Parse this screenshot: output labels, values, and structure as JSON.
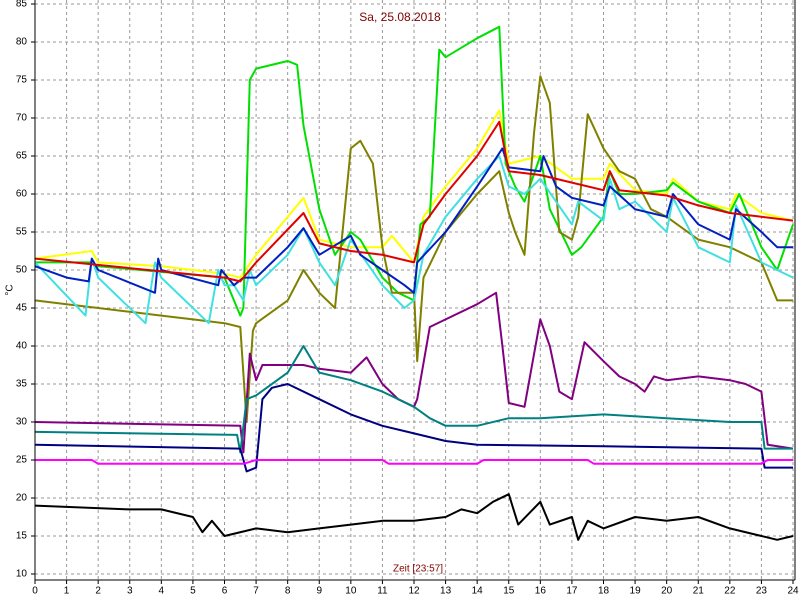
{
  "chart_data": {
    "type": "line",
    "title": "Sa, 25.08.2018",
    "xlabel": "Zeit [23:57]",
    "ylabel": "°C",
    "xlim": [
      0,
      24
    ],
    "xticks": [
      0,
      1,
      2,
      3,
      4,
      5,
      6,
      7,
      8,
      9,
      10,
      11,
      12,
      13,
      14,
      15,
      16,
      17,
      18,
      19,
      20,
      21,
      22,
      23,
      24
    ],
    "ylim": [
      10,
      85
    ],
    "yticks": [
      10,
      15,
      20,
      25,
      30,
      35,
      40,
      45,
      50,
      55,
      60,
      65,
      70,
      75,
      80,
      85
    ],
    "grid": true,
    "series": [
      {
        "color": "#ffff00",
        "x": [
          0,
          1.8,
          2,
          4,
          6,
          6.5,
          7,
          8.5,
          9,
          10,
          11,
          11.3,
          12,
          12.3,
          13,
          14,
          14.7,
          15,
          16,
          17,
          18,
          18.2,
          19,
          20,
          20.2,
          21,
          22,
          22.2,
          23,
          24
        ],
        "values": [
          51.5,
          52.5,
          51,
          50.5,
          49.5,
          49,
          52,
          59.5,
          54,
          53,
          53,
          54.5,
          51,
          57,
          61,
          66,
          71,
          64,
          65,
          62,
          62,
          64,
          60.5,
          60,
          62,
          59,
          58,
          60,
          57.5,
          56.5
        ]
      },
      {
        "color": "#00e000",
        "x": [
          0,
          1.8,
          2,
          6,
          6.5,
          6.6,
          6.8,
          7,
          8,
          8.3,
          8.5,
          9,
          9.5,
          10,
          10.3,
          11,
          11.5,
          12,
          12.2,
          12.5,
          12.8,
          13,
          14,
          14.7,
          14.9,
          15.2,
          15.5,
          16,
          16.3,
          17,
          17.3,
          18,
          18.2,
          18.5,
          19,
          20,
          20.2,
          21,
          22,
          22.3,
          23,
          23.5,
          24
        ],
        "values": [
          51,
          51,
          50.5,
          49,
          44,
          45,
          75,
          76.5,
          77.5,
          77,
          69,
          58,
          52,
          55,
          54,
          49,
          47,
          46,
          56,
          57,
          79,
          78,
          80.5,
          82,
          64,
          61,
          59,
          65,
          58,
          52,
          53,
          57,
          63,
          60,
          60,
          60.5,
          61.5,
          59,
          57.5,
          60,
          53,
          50,
          56
        ]
      },
      {
        "color": "#808000",
        "x": [
          0,
          1,
          2,
          3,
          4,
          5,
          6,
          6.5,
          6.7,
          6.9,
          7,
          8,
          8.5,
          9,
          9.5,
          10,
          10.3,
          10.7,
          11,
          11.3,
          12,
          12.1,
          12.3,
          13,
          14,
          14.7,
          15,
          15.2,
          15.5,
          15.8,
          16,
          16.3,
          16.6,
          17,
          17.2,
          17.5,
          18,
          18.5,
          19,
          19.5,
          20,
          20.5,
          21,
          22,
          23,
          23.5,
          24
        ],
        "values": [
          46,
          45.5,
          45,
          44.5,
          44,
          43.5,
          43,
          42.5,
          30,
          42,
          43,
          46,
          50,
          47,
          45,
          66,
          67,
          64,
          53,
          47,
          47,
          38,
          49,
          55,
          60,
          63,
          57.5,
          55,
          52,
          68,
          75.5,
          72,
          55,
          54,
          57,
          70.5,
          66,
          63,
          62,
          58,
          57,
          55.5,
          54,
          53,
          51,
          46,
          46
        ]
      },
      {
        "color": "#40e0e0",
        "x": [
          0,
          1.6,
          1.8,
          2,
          3.5,
          3.8,
          4,
          5.5,
          5.8,
          6,
          6.3,
          6.6,
          6.8,
          7,
          8,
          8.5,
          9,
          9.5,
          10,
          10.5,
          11,
          11.7,
          12,
          12.3,
          13,
          14,
          14.7,
          15,
          15.5,
          16,
          17,
          17.2,
          18,
          18.2,
          18.5,
          19,
          20,
          20.2,
          21,
          22,
          22.2,
          23,
          24
        ],
        "values": [
          51,
          44,
          51.5,
          49,
          43,
          51,
          49,
          43,
          50,
          48,
          48,
          46,
          50,
          48,
          52,
          55.5,
          51,
          48,
          54,
          51,
          48,
          45,
          46,
          52,
          57,
          62,
          65,
          61,
          60,
          62,
          56,
          59,
          56.5,
          62,
          58,
          59,
          55,
          59.5,
          53,
          51,
          58.5,
          51,
          49
        ]
      },
      {
        "color": "#0020c0",
        "x": [
          0,
          1,
          1.7,
          1.8,
          2,
          3.8,
          3.9,
          4,
          5.8,
          5.9,
          6.3,
          6.6,
          7,
          8,
          8.5,
          9,
          10,
          10.3,
          11,
          11.7,
          12,
          12.1,
          13,
          14,
          14.8,
          15,
          16,
          16.1,
          16.5,
          17,
          18,
          18.2,
          19,
          20,
          20.2,
          21,
          22,
          22.2,
          23,
          23.5,
          24
        ],
        "values": [
          50.5,
          49,
          48.5,
          51.5,
          50,
          47,
          51.5,
          50,
          48,
          50,
          48,
          49,
          49,
          53,
          55.5,
          52,
          54.5,
          52,
          50,
          48,
          47,
          51,
          55,
          61,
          66,
          63.5,
          63,
          65,
          61,
          59.5,
          58.5,
          61,
          58,
          57,
          60,
          56,
          54,
          58,
          55,
          53,
          53
        ]
      },
      {
        "color": "#e00000",
        "x": [
          0,
          6,
          6.5,
          7,
          8.5,
          9,
          10,
          11,
          12,
          12.3,
          13,
          14,
          14.7,
          15,
          16,
          17,
          18,
          18.2,
          18.5,
          20,
          21,
          22,
          23,
          24
        ],
        "values": [
          51.5,
          49,
          48.5,
          51,
          57.5,
          53.5,
          52.5,
          52,
          51,
          56,
          60,
          65,
          69.5,
          63,
          62.5,
          61.5,
          60.5,
          63,
          60.5,
          59.8,
          58.5,
          57.5,
          57,
          56.5
        ]
      },
      {
        "color": "#800080",
        "x": [
          0,
          6.5,
          6.6,
          6.8,
          7,
          7.2,
          8,
          8.5,
          9,
          10,
          10.5,
          11,
          11.5,
          12,
          12.1,
          12.5,
          13,
          14,
          14.6,
          14.8,
          15,
          15.5,
          16,
          16.3,
          16.6,
          17,
          17.4,
          18,
          18.5,
          19,
          19.3,
          19.6,
          20,
          21,
          22,
          22.5,
          23,
          23.2,
          24
        ],
        "values": [
          30,
          29.5,
          26,
          39,
          35.5,
          37.5,
          37.5,
          37.5,
          37,
          36.5,
          38.5,
          35,
          33,
          32,
          33,
          42.5,
          43.5,
          45.5,
          47,
          40,
          32.5,
          32,
          43.5,
          40,
          34,
          33,
          40.5,
          38,
          36,
          35,
          34,
          36,
          35.5,
          36,
          35.5,
          35,
          34,
          27,
          26.5
        ]
      },
      {
        "color": "#008080",
        "x": [
          0,
          6.4,
          6.5,
          6.7,
          7,
          8,
          8.5,
          9,
          10,
          11,
          12,
          12.5,
          13,
          14,
          15,
          16,
          18,
          20,
          22,
          23,
          23.1,
          24
        ],
        "values": [
          28.7,
          28.3,
          26,
          33,
          33.5,
          36.5,
          40,
          36.5,
          35.5,
          34,
          32,
          30.5,
          29.5,
          29.5,
          30.5,
          30.5,
          31,
          30.5,
          30,
          30,
          26.5,
          26.5
        ]
      },
      {
        "color": "#000080",
        "x": [
          0,
          6.5,
          6.7,
          7,
          7.2,
          7.5,
          8,
          9,
          10,
          11,
          12,
          13,
          14,
          18,
          23,
          23.1,
          24
        ],
        "values": [
          27,
          26.5,
          23.5,
          24,
          33,
          34.5,
          35,
          33,
          31,
          29.5,
          28.5,
          27.5,
          27,
          26.8,
          26.5,
          24,
          24
        ]
      },
      {
        "color": "#ff00ff",
        "x": [
          0,
          1.8,
          2,
          6.6,
          7,
          11,
          11.2,
          14,
          14.2,
          17.5,
          17.7,
          23,
          23.2,
          24
        ],
        "values": [
          25,
          25,
          24.5,
          24.5,
          25,
          25,
          24.5,
          24.5,
          25,
          25,
          24.5,
          24.5,
          25,
          25
        ]
      },
      {
        "color": "#000000",
        "x": [
          0,
          3,
          4,
          5,
          5.3,
          5.6,
          6,
          7,
          8,
          9,
          10,
          11,
          12,
          13,
          13.5,
          14,
          14.5,
          15,
          15.3,
          16,
          16.3,
          17,
          17.2,
          17.5,
          18,
          19,
          20,
          21,
          22,
          23,
          23.5,
          24
        ],
        "values": [
          19,
          18.5,
          18.5,
          17.5,
          15.5,
          17,
          15,
          16,
          15.5,
          16,
          16.5,
          17,
          17,
          17.5,
          18.5,
          18,
          19.5,
          20.5,
          16.5,
          19.5,
          16.5,
          17.5,
          14.5,
          17,
          16,
          17.5,
          17,
          17.5,
          16,
          15,
          14.5,
          15
        ]
      }
    ]
  }
}
